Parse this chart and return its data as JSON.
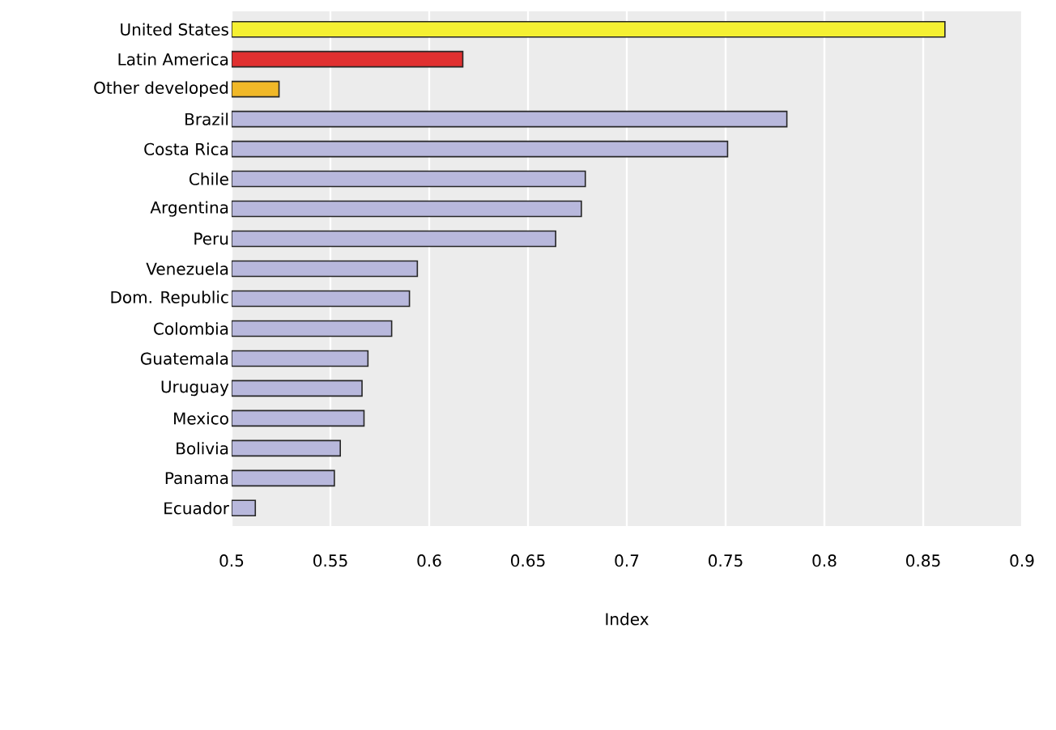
{
  "chart_data": {
    "type": "bar",
    "orientation": "horizontal",
    "xlabel": "Index",
    "categories": [
      "United States",
      "Latin America",
      "Other developed",
      "Brazil",
      "Costa Rica",
      "Chile",
      "Argentina",
      "Peru",
      "Venezuela",
      "Dom. Republic",
      "Colombia",
      "Guatemala",
      "Uruguay",
      "Mexico",
      "Bolivia",
      "Panama",
      "Ecuador"
    ],
    "values": [
      0.861,
      0.617,
      0.524,
      0.781,
      0.751,
      0.679,
      0.677,
      0.664,
      0.594,
      0.59,
      0.581,
      0.569,
      0.566,
      0.567,
      0.555,
      0.552,
      0.512
    ],
    "colors": [
      "#f5f032",
      "#e03030",
      "#f0b828",
      "#b8b8dc",
      "#b8b8dc",
      "#b8b8dc",
      "#b8b8dc",
      "#b8b8dc",
      "#b8b8dc",
      "#b8b8dc",
      "#b8b8dc",
      "#b8b8dc",
      "#b8b8dc",
      "#b8b8dc",
      "#b8b8dc",
      "#b8b8dc",
      "#b8b8dc"
    ],
    "xlim": [
      0.5,
      0.9
    ],
    "xticks": [
      0.5,
      0.55,
      0.6,
      0.65,
      0.7,
      0.75,
      0.8,
      0.85,
      0.9
    ],
    "grid": "x"
  }
}
